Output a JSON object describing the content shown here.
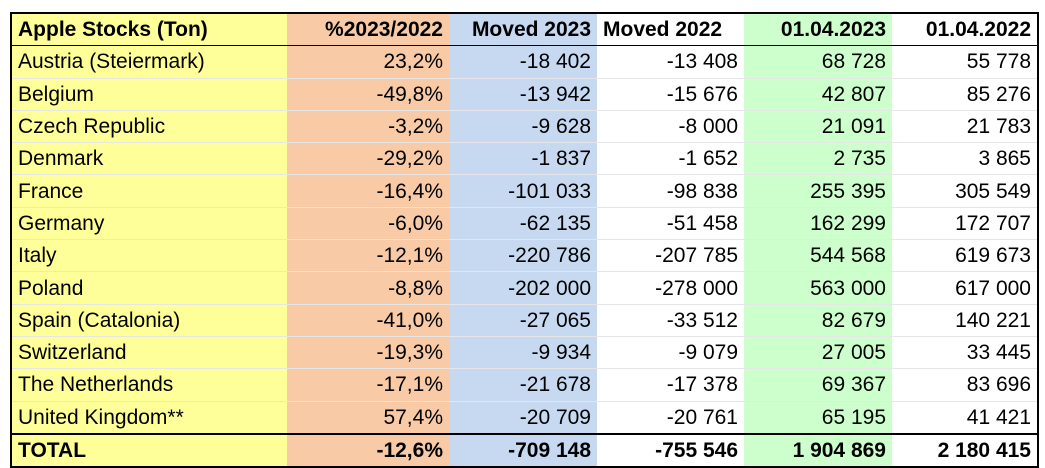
{
  "table": {
    "headers": [
      "Apple Stocks (Ton)",
      "%2023/2022",
      "Moved 2023",
      "Moved 2022",
      "01.04.2023",
      "01.04.2022"
    ],
    "rows": [
      [
        "Austria (Steiermark)",
        "23,2%",
        "-18 402",
        "-13 408",
        "68 728",
        "55 778"
      ],
      [
        "Belgium",
        "-49,8%",
        "-13 942",
        "-15 676",
        "42 807",
        "85 276"
      ],
      [
        "Czech Republic",
        "-3,2%",
        "-9 628",
        "-8 000",
        "21 091",
        "21 783"
      ],
      [
        "Denmark",
        "-29,2%",
        "-1 837",
        "-1 652",
        "2 735",
        "3 865"
      ],
      [
        "France",
        "-16,4%",
        "-101 033",
        "-98 838",
        "255 395",
        "305 549"
      ],
      [
        "Germany",
        "-6,0%",
        "-62 135",
        "-51 458",
        "162 299",
        "172 707"
      ],
      [
        "Italy",
        "-12,1%",
        "-220 786",
        "-207 785",
        "544 568",
        "619 673"
      ],
      [
        "Poland",
        "-8,8%",
        "-202 000",
        "-278 000",
        "563 000",
        "617 000"
      ],
      [
        "Spain (Catalonia)",
        "-41,0%",
        "-27 065",
        "-33 512",
        "82 679",
        "140 221"
      ],
      [
        "Switzerland",
        "-19,3%",
        "-9 934",
        "-9 079",
        "27 005",
        "33 445"
      ],
      [
        "The Netherlands",
        "-17,1%",
        "-21 678",
        "-17 378",
        "69 367",
        "83 696"
      ],
      [
        "United Kingdom**",
        "57,4%",
        "-20 709",
        "-20 761",
        "65 195",
        "41 421"
      ]
    ],
    "total": [
      "TOTAL",
      "-12,6%",
      "-709 148",
      "-755 546",
      "1 904 869",
      "2 180 415"
    ],
    "column_colors": [
      "#ffff99",
      "#f8cba6",
      "#c6d9f1",
      "#ffffff",
      "#ccffcc",
      "#ffffff"
    ]
  }
}
